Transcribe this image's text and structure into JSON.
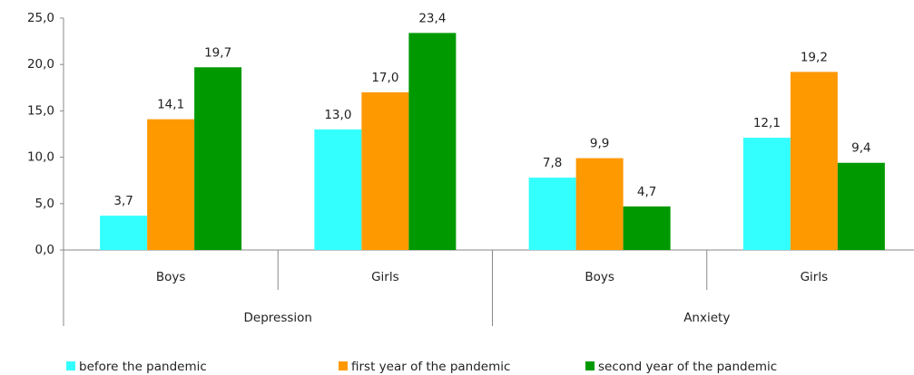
{
  "chart_data": {
    "type": "bar",
    "groups": [
      {
        "label": "Depression",
        "categories": [
          "Boys",
          "Girls"
        ]
      },
      {
        "label": "Anxiety",
        "categories": [
          "Boys",
          "Girls"
        ]
      }
    ],
    "series": [
      {
        "name": "before the pandemic",
        "color": "#33ffff",
        "values": [
          3.7,
          13.0,
          7.8,
          12.1
        ],
        "value_labels": [
          "3,7",
          "13,0",
          "7,8",
          "12,1"
        ]
      },
      {
        "name": "first year of the pandemic",
        "color": "#ff9900",
        "values": [
          14.1,
          17.0,
          9.9,
          19.2
        ],
        "value_labels": [
          "14,1",
          "17,0",
          "9,9",
          "19,2"
        ]
      },
      {
        "name": "second year of the pandemic",
        "color": "#009900",
        "values": [
          19.7,
          23.4,
          4.7,
          9.4
        ],
        "value_labels": [
          "19,7",
          "23,4",
          "4,7",
          "9,4"
        ]
      }
    ],
    "ylim": [
      0,
      25
    ],
    "yticks": [
      {
        "value": 0,
        "label": "0,0"
      },
      {
        "value": 5,
        "label": "5,0"
      },
      {
        "value": 10,
        "label": "10,0"
      },
      {
        "value": 15,
        "label": "15,0"
      },
      {
        "value": 20,
        "label": "20,0"
      },
      {
        "value": 25,
        "label": "25,0"
      }
    ],
    "grid": false,
    "legend": "bottom"
  }
}
